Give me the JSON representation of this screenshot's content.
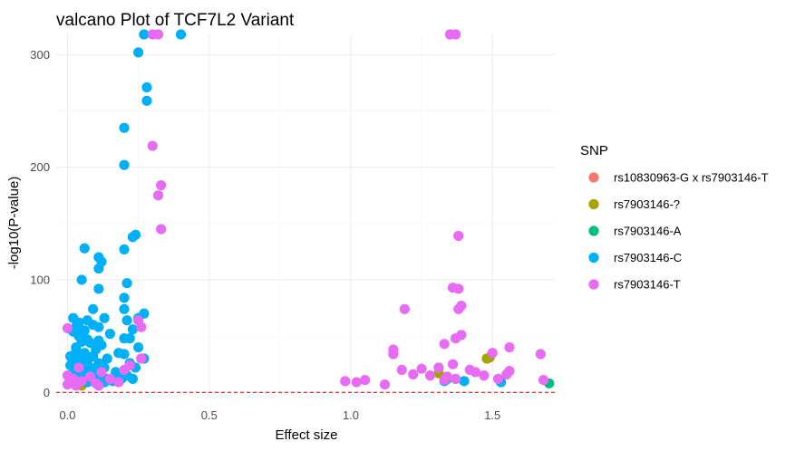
{
  "chart_data": {
    "type": "scatter",
    "title": "valcano Plot of TCF7L2 Variant",
    "xlabel": "Effect size",
    "ylabel": "-log10(P-value)",
    "xlim": [
      -0.04,
      1.72
    ],
    "ylim": [
      -3,
      318
    ],
    "x_ticks": [
      0.0,
      0.5,
      1.0,
      1.5
    ],
    "x_tick_labels": [
      "0.0",
      "0.5",
      "1.0",
      "1.5"
    ],
    "y_ticks": [
      0,
      100,
      200,
      300
    ],
    "y_tick_labels": [
      "0",
      "100",
      "200",
      "300"
    ],
    "threshold_line": {
      "y": 0,
      "style": "dashed",
      "color": "#cc0000"
    },
    "grid": true,
    "legend": {
      "title": "SNP",
      "position": "right"
    },
    "series": [
      {
        "name": "rs10830963-G x rs7903146-T",
        "color": "#F8766D",
        "points": []
      },
      {
        "name": "rs7903146-?",
        "color": "#A3A500",
        "points": [
          [
            0.05,
            6
          ],
          [
            1.31,
            17
          ],
          [
            1.48,
            30
          ],
          [
            1.49,
            31
          ]
        ]
      },
      {
        "name": "rs7903146-A",
        "color": "#00BF7D",
        "points": [
          [
            1.7,
            8
          ],
          [
            1.34,
            12
          ]
        ]
      },
      {
        "name": "rs7903146-C",
        "color": "#00B0F6",
        "points": [
          [
            0.27,
            318
          ],
          [
            0.4,
            318
          ],
          [
            0.25,
            302
          ],
          [
            0.28,
            271
          ],
          [
            0.28,
            259
          ],
          [
            0.2,
            235
          ],
          [
            0.2,
            202
          ],
          [
            0.24,
            140
          ],
          [
            0.23,
            138
          ],
          [
            0.06,
            128
          ],
          [
            0.2,
            127
          ],
          [
            0.11,
            120
          ],
          [
            0.12,
            116
          ],
          [
            0.11,
            110
          ],
          [
            0.05,
            100
          ],
          [
            0.21,
            97
          ],
          [
            0.11,
            92
          ],
          [
            0.2,
            84
          ],
          [
            0.09,
            74
          ],
          [
            0.2,
            74
          ],
          [
            0.27,
            70
          ],
          [
            0.02,
            66
          ],
          [
            0.25,
            66
          ],
          [
            0.13,
            66
          ],
          [
            0.07,
            64
          ],
          [
            0.21,
            64
          ],
          [
            0.04,
            62
          ],
          [
            0.09,
            60
          ],
          [
            0.11,
            58
          ],
          [
            0.03,
            58
          ],
          [
            0.23,
            56
          ],
          [
            0.06,
            55
          ],
          [
            0.02,
            54
          ],
          [
            0.15,
            52
          ],
          [
            0.04,
            50
          ],
          [
            0.2,
            48
          ],
          [
            0.22,
            48
          ],
          [
            0.07,
            47
          ],
          [
            0.11,
            46
          ],
          [
            0.05,
            45
          ],
          [
            0.08,
            44
          ],
          [
            0.12,
            42
          ],
          [
            0.03,
            40
          ],
          [
            0.25,
            40
          ],
          [
            0.1,
            38
          ],
          [
            0.03,
            36
          ],
          [
            0.06,
            35
          ],
          [
            0.18,
            35
          ],
          [
            0.2,
            34
          ],
          [
            0.01,
            32
          ],
          [
            0.09,
            32
          ],
          [
            0.04,
            30
          ],
          [
            0.14,
            30
          ],
          [
            0.27,
            30
          ],
          [
            0.02,
            28
          ],
          [
            0.07,
            27
          ],
          [
            0.11,
            26
          ],
          [
            0.05,
            25
          ],
          [
            0.22,
            26
          ],
          [
            0.01,
            24
          ],
          [
            0.03,
            22
          ],
          [
            0.08,
            22
          ],
          [
            0.13,
            22
          ],
          [
            0.24,
            22
          ],
          [
            0.04,
            20
          ],
          [
            0.06,
            19
          ],
          [
            0.1,
            18
          ],
          [
            0.17,
            18
          ],
          [
            0.02,
            17
          ],
          [
            0.08,
            16
          ],
          [
            0.12,
            15
          ],
          [
            0.21,
            15
          ],
          [
            0.01,
            14
          ],
          [
            0.05,
            13
          ],
          [
            0.09,
            13
          ],
          [
            0.14,
            12
          ],
          [
            0.19,
            12
          ],
          [
            0.23,
            12
          ],
          [
            0.03,
            11
          ],
          [
            0.06,
            11
          ],
          [
            0.11,
            10
          ],
          [
            0.16,
            10
          ],
          [
            0.02,
            9
          ],
          [
            0.07,
            9
          ],
          [
            0.13,
            9
          ],
          [
            1.33,
            10
          ],
          [
            1.4,
            10
          ],
          [
            1.53,
            9
          ]
        ]
      },
      {
        "name": "rs7903146-T",
        "color": "#E76BF3",
        "points": [
          [
            0.3,
            318
          ],
          [
            0.32,
            318
          ],
          [
            1.35,
            318
          ],
          [
            1.37,
            318
          ],
          [
            0.3,
            219
          ],
          [
            0.33,
            184
          ],
          [
            0.32,
            175
          ],
          [
            0.33,
            145
          ],
          [
            1.38,
            139
          ],
          [
            1.36,
            93
          ],
          [
            1.38,
            92
          ],
          [
            1.39,
            77
          ],
          [
            1.38,
            74
          ],
          [
            1.19,
            74
          ],
          [
            0.25,
            64
          ],
          [
            0.26,
            58
          ],
          [
            0.0,
            57
          ],
          [
            1.39,
            51
          ],
          [
            1.37,
            48
          ],
          [
            1.33,
            43
          ],
          [
            1.56,
            40
          ],
          [
            1.15,
            38
          ],
          [
            1.67,
            34
          ],
          [
            1.15,
            34
          ],
          [
            1.5,
            35
          ],
          [
            1.36,
            25
          ],
          [
            1.31,
            22
          ],
          [
            1.25,
            21
          ],
          [
            1.18,
            20
          ],
          [
            1.42,
            20
          ],
          [
            1.44,
            18
          ],
          [
            1.56,
            19
          ],
          [
            1.22,
            16
          ],
          [
            1.28,
            15
          ],
          [
            1.34,
            14
          ],
          [
            1.47,
            15
          ],
          [
            1.55,
            16
          ],
          [
            1.37,
            12
          ],
          [
            1.33,
            11
          ],
          [
            1.52,
            12
          ],
          [
            1.68,
            11
          ],
          [
            0.98,
            10
          ],
          [
            1.02,
            9
          ],
          [
            1.05,
            11
          ],
          [
            1.12,
            7
          ],
          [
            0.0,
            15
          ],
          [
            0.02,
            12
          ],
          [
            0.05,
            10
          ],
          [
            0.0,
            7
          ],
          [
            0.1,
            8
          ],
          [
            0.15,
            12
          ],
          [
            0.18,
            9
          ],
          [
            0.08,
            14
          ],
          [
            0.12,
            18
          ],
          [
            0.2,
            20
          ],
          [
            0.22,
            24
          ],
          [
            0.04,
            22
          ],
          [
            0.11,
            6
          ],
          [
            0.03,
            6
          ],
          [
            0.26,
            30
          ]
        ]
      }
    ]
  }
}
